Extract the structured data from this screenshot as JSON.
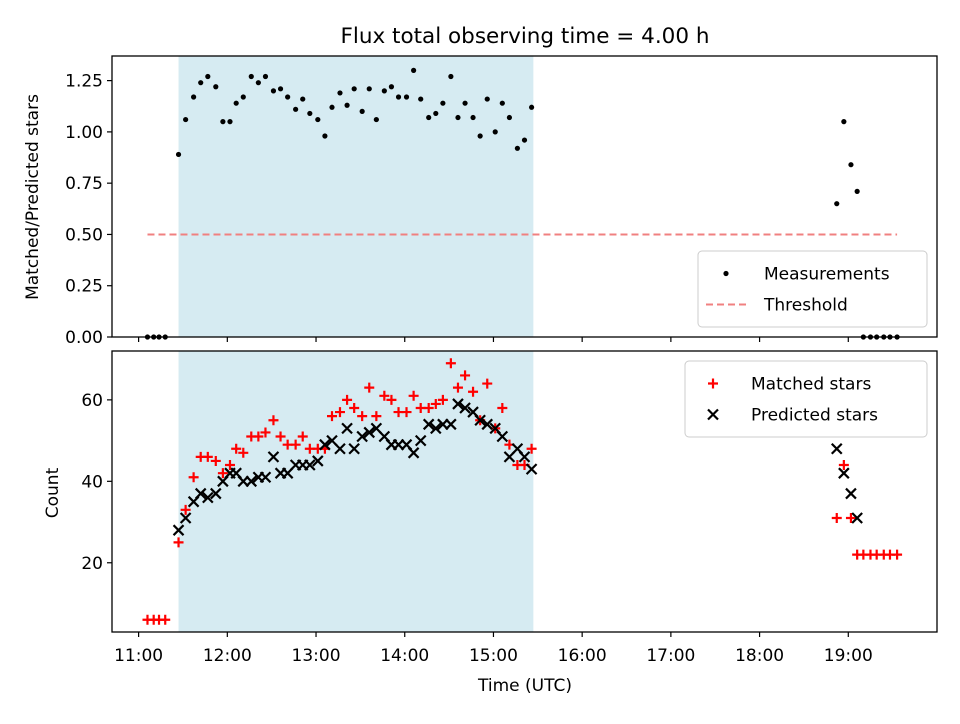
{
  "chart_data": [
    {
      "type": "scatter",
      "title": "Flux total observing time = 4.00 h",
      "xlabel": "",
      "ylabel": "Matched/Predicted stars",
      "xlim": [
        10.7,
        20.0
      ],
      "ylim": [
        0,
        1.37
      ],
      "yticks": [
        0,
        0.25,
        0.5,
        0.75,
        1.0,
        1.25
      ],
      "ytick_labels": [
        "0.00",
        "0.25",
        "0.50",
        "0.75",
        "1.00",
        "1.25"
      ],
      "shaded_span": [
        11.45,
        15.45
      ],
      "legend_position": "lower-right",
      "series": [
        {
          "name": "Measurements",
          "marker": "dot",
          "color": "#000000",
          "points": [
            [
              11.1,
              0.0
            ],
            [
              11.17,
              0.0
            ],
            [
              11.23,
              0.0
            ],
            [
              11.3,
              0.0
            ],
            [
              11.45,
              0.89
            ],
            [
              11.53,
              1.06
            ],
            [
              11.62,
              1.17
            ],
            [
              11.7,
              1.24
            ],
            [
              11.78,
              1.27
            ],
            [
              11.87,
              1.22
            ],
            [
              11.95,
              1.05
            ],
            [
              12.03,
              1.05
            ],
            [
              12.1,
              1.14
            ],
            [
              12.18,
              1.17
            ],
            [
              12.27,
              1.27
            ],
            [
              12.35,
              1.24
            ],
            [
              12.43,
              1.27
            ],
            [
              12.52,
              1.2
            ],
            [
              12.6,
              1.21
            ],
            [
              12.68,
              1.17
            ],
            [
              12.77,
              1.11
            ],
            [
              12.85,
              1.16
            ],
            [
              12.93,
              1.09
            ],
            [
              13.02,
              1.06
            ],
            [
              13.1,
              0.98
            ],
            [
              13.18,
              1.12
            ],
            [
              13.27,
              1.19
            ],
            [
              13.35,
              1.13
            ],
            [
              13.43,
              1.21
            ],
            [
              13.52,
              1.1
            ],
            [
              13.6,
              1.21
            ],
            [
              13.68,
              1.06
            ],
            [
              13.77,
              1.2
            ],
            [
              13.85,
              1.22
            ],
            [
              13.93,
              1.17
            ],
            [
              14.02,
              1.17
            ],
            [
              14.1,
              1.3
            ],
            [
              14.18,
              1.16
            ],
            [
              14.27,
              1.07
            ],
            [
              14.35,
              1.09
            ],
            [
              14.43,
              1.14
            ],
            [
              14.52,
              1.27
            ],
            [
              14.6,
              1.07
            ],
            [
              14.68,
              1.14
            ],
            [
              14.77,
              1.07
            ],
            [
              14.85,
              0.98
            ],
            [
              14.93,
              1.16
            ],
            [
              15.02,
              1.0
            ],
            [
              15.1,
              1.14
            ],
            [
              15.18,
              1.07
            ],
            [
              15.27,
              0.92
            ],
            [
              15.35,
              0.96
            ],
            [
              15.43,
              1.12
            ],
            [
              18.87,
              0.65
            ],
            [
              18.95,
              1.05
            ],
            [
              19.03,
              0.84
            ],
            [
              19.1,
              0.71
            ],
            [
              19.17,
              0.0
            ],
            [
              19.25,
              0.0
            ],
            [
              19.32,
              0.0
            ],
            [
              19.4,
              0.0
            ],
            [
              19.47,
              0.0
            ],
            [
              19.55,
              0.0
            ]
          ]
        },
        {
          "name": "Threshold",
          "marker": "dashed-line",
          "color": "#f08080",
          "x": [
            11.1,
            19.55
          ],
          "y": [
            0.5,
            0.5
          ]
        }
      ]
    },
    {
      "type": "scatter",
      "xlabel": "Time (UTC)",
      "ylabel": "Count",
      "xlim": [
        10.7,
        20.0
      ],
      "ylim": [
        3,
        72
      ],
      "xticks": [
        11,
        12,
        13,
        14,
        15,
        16,
        17,
        18,
        19
      ],
      "xtick_labels": [
        "11:00",
        "12:00",
        "13:00",
        "14:00",
        "15:00",
        "16:00",
        "17:00",
        "18:00",
        "19:00"
      ],
      "yticks": [
        20,
        40,
        60
      ],
      "ytick_labels": [
        "20",
        "40",
        "60"
      ],
      "shaded_span": [
        11.45,
        15.45
      ],
      "legend_position": "upper-right",
      "series": [
        {
          "name": "Matched stars",
          "marker": "plus",
          "color": "#ff0000",
          "points": [
            [
              11.1,
              6
            ],
            [
              11.17,
              6
            ],
            [
              11.23,
              6
            ],
            [
              11.3,
              6
            ],
            [
              11.45,
              25
            ],
            [
              11.53,
              33
            ],
            [
              11.62,
              41
            ],
            [
              11.7,
              46
            ],
            [
              11.78,
              46
            ],
            [
              11.87,
              45
            ],
            [
              11.95,
              42
            ],
            [
              12.03,
              44
            ],
            [
              12.1,
              48
            ],
            [
              12.18,
              47
            ],
            [
              12.27,
              51
            ],
            [
              12.35,
              51
            ],
            [
              12.43,
              52
            ],
            [
              12.52,
              55
            ],
            [
              12.6,
              51
            ],
            [
              12.68,
              49
            ],
            [
              12.77,
              49
            ],
            [
              12.85,
              51
            ],
            [
              12.93,
              48
            ],
            [
              13.02,
              48
            ],
            [
              13.1,
              48
            ],
            [
              13.18,
              56
            ],
            [
              13.27,
              57
            ],
            [
              13.35,
              60
            ],
            [
              13.43,
              58
            ],
            [
              13.52,
              56
            ],
            [
              13.6,
              63
            ],
            [
              13.68,
              56
            ],
            [
              13.77,
              61
            ],
            [
              13.85,
              60
            ],
            [
              13.93,
              57
            ],
            [
              14.02,
              57
            ],
            [
              14.1,
              61
            ],
            [
              14.18,
              58
            ],
            [
              14.27,
              58
            ],
            [
              14.35,
              59
            ],
            [
              14.43,
              60
            ],
            [
              14.52,
              69
            ],
            [
              14.6,
              63
            ],
            [
              14.68,
              66
            ],
            [
              14.77,
              62
            ],
            [
              14.85,
              55
            ],
            [
              14.93,
              64
            ],
            [
              15.02,
              53
            ],
            [
              15.1,
              58
            ],
            [
              15.18,
              49
            ],
            [
              15.27,
              44
            ],
            [
              15.35,
              44
            ],
            [
              15.43,
              48
            ],
            [
              18.87,
              31
            ],
            [
              18.95,
              44
            ],
            [
              19.03,
              31
            ],
            [
              19.1,
              22
            ],
            [
              19.17,
              22
            ],
            [
              19.25,
              22
            ],
            [
              19.32,
              22
            ],
            [
              19.4,
              22
            ],
            [
              19.47,
              22
            ],
            [
              19.55,
              22
            ]
          ]
        },
        {
          "name": "Predicted stars",
          "marker": "x",
          "color": "#000000",
          "points": [
            [
              11.45,
              28
            ],
            [
              11.53,
              31
            ],
            [
              11.62,
              35
            ],
            [
              11.7,
              37
            ],
            [
              11.78,
              36
            ],
            [
              11.87,
              37
            ],
            [
              11.95,
              40
            ],
            [
              12.03,
              42
            ],
            [
              12.1,
              42
            ],
            [
              12.18,
              40
            ],
            [
              12.27,
              40
            ],
            [
              12.35,
              41
            ],
            [
              12.43,
              41
            ],
            [
              12.52,
              46
            ],
            [
              12.6,
              42
            ],
            [
              12.68,
              42
            ],
            [
              12.77,
              44
            ],
            [
              12.85,
              44
            ],
            [
              12.93,
              44
            ],
            [
              13.02,
              45
            ],
            [
              13.1,
              49
            ],
            [
              13.18,
              50
            ],
            [
              13.27,
              48
            ],
            [
              13.35,
              53
            ],
            [
              13.43,
              48
            ],
            [
              13.52,
              51
            ],
            [
              13.6,
              52
            ],
            [
              13.68,
              53
            ],
            [
              13.77,
              51
            ],
            [
              13.85,
              49
            ],
            [
              13.93,
              49
            ],
            [
              14.02,
              49
            ],
            [
              14.1,
              47
            ],
            [
              14.18,
              50
            ],
            [
              14.27,
              54
            ],
            [
              14.35,
              53
            ],
            [
              14.43,
              54
            ],
            [
              14.52,
              54
            ],
            [
              14.6,
              59
            ],
            [
              14.68,
              58
            ],
            [
              14.77,
              57
            ],
            [
              14.85,
              55
            ],
            [
              14.93,
              54
            ],
            [
              15.02,
              53
            ],
            [
              15.1,
              51
            ],
            [
              15.18,
              46
            ],
            [
              15.27,
              48
            ],
            [
              15.35,
              46
            ],
            [
              15.43,
              43
            ],
            [
              18.87,
              48
            ],
            [
              18.95,
              42
            ],
            [
              19.03,
              37
            ],
            [
              19.1,
              31
            ]
          ]
        }
      ]
    }
  ],
  "colors": {
    "shade": "#add8e6",
    "measurement": "#000000",
    "threshold": "#f08080",
    "matched": "#ff0000",
    "predicted": "#000000"
  }
}
